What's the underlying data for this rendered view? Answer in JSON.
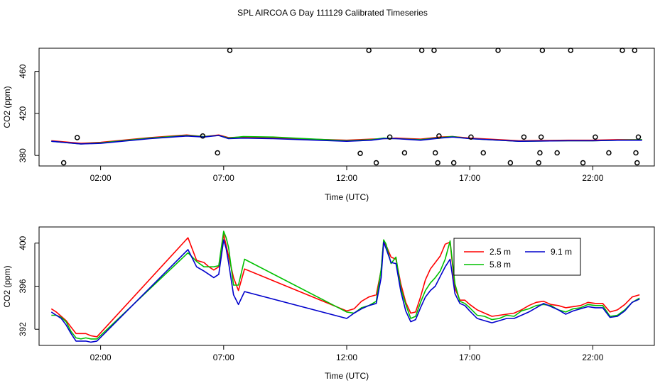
{
  "title": "SPL AIRCOA G  Day 111129  Calibrated Timeseries",
  "chart_data": [
    {
      "type": "scatter+line",
      "ylabel": "CO2 (ppm)",
      "xlabel": "Time (UTC)",
      "xlim": [
        -0.5,
        24.5
      ],
      "ylim": [
        370,
        482
      ],
      "x_ticks": [
        {
          "v": 2,
          "label": "02:00"
        },
        {
          "v": 7,
          "label": "07:00"
        },
        {
          "v": 12,
          "label": "12:00"
        },
        {
          "v": 17,
          "label": "17:00"
        },
        {
          "v": 22,
          "label": "22:00"
        }
      ],
      "y_ticks": [
        {
          "v": 380,
          "label": "380"
        },
        {
          "v": 420,
          "label": "420"
        },
        {
          "v": 460,
          "label": "460"
        }
      ],
      "points_color": "#000000",
      "points": [
        {
          "x": 0.5,
          "y": 373
        },
        {
          "x": 1.05,
          "y": 397
        },
        {
          "x": 6.15,
          "y": 398.5
        },
        {
          "x": 6.75,
          "y": 382.5
        },
        {
          "x": 7.25,
          "y": 480
        },
        {
          "x": 12.55,
          "y": 382
        },
        {
          "x": 12.9,
          "y": 480
        },
        {
          "x": 13.2,
          "y": 373
        },
        {
          "x": 13.75,
          "y": 397.5
        },
        {
          "x": 14.35,
          "y": 382.5
        },
        {
          "x": 15.05,
          "y": 480
        },
        {
          "x": 15.55,
          "y": 480
        },
        {
          "x": 15.6,
          "y": 382.5
        },
        {
          "x": 15.7,
          "y": 373
        },
        {
          "x": 15.75,
          "y": 398.5
        },
        {
          "x": 16.35,
          "y": 373
        },
        {
          "x": 17.05,
          "y": 397.5
        },
        {
          "x": 17.55,
          "y": 382.5
        },
        {
          "x": 18.15,
          "y": 480
        },
        {
          "x": 18.65,
          "y": 373
        },
        {
          "x": 19.2,
          "y": 397.5
        },
        {
          "x": 19.8,
          "y": 373
        },
        {
          "x": 19.85,
          "y": 382.5
        },
        {
          "x": 19.9,
          "y": 397.5
        },
        {
          "x": 19.95,
          "y": 480
        },
        {
          "x": 20.55,
          "y": 382.5
        },
        {
          "x": 21.1,
          "y": 480
        },
        {
          "x": 21.6,
          "y": 373
        },
        {
          "x": 22.1,
          "y": 397.5
        },
        {
          "x": 22.65,
          "y": 382.5
        },
        {
          "x": 23.2,
          "y": 480
        },
        {
          "x": 23.7,
          "y": 480
        },
        {
          "x": 23.75,
          "y": 382.5
        },
        {
          "x": 23.8,
          "y": 373
        },
        {
          "x": 23.85,
          "y": 397.5
        }
      ],
      "series": [
        {
          "name": "2.5 m",
          "color": "#ff0000",
          "x": [
            0,
            1.2,
            2,
            4,
            5.5,
            6.2,
            6.8,
            7.2,
            7.8,
            9,
            12,
            13,
            13.5,
            14,
            15,
            15.8,
            16.3,
            17,
            19,
            21,
            22,
            23,
            24
          ],
          "y": [
            394,
            391.5,
            392.5,
            397,
            399.5,
            398,
            399.5,
            397,
            397.5,
            396.5,
            394.5,
            395.5,
            396,
            396.5,
            395.5,
            397.5,
            398,
            396.5,
            394,
            394.5,
            394.5,
            395,
            395
          ]
        },
        {
          "name": "5.8 m",
          "color": "#00c000",
          "x": [
            0,
            1.2,
            2,
            4,
            5.5,
            6.2,
            6.8,
            7.2,
            7.8,
            9,
            12,
            13,
            13.5,
            14,
            15,
            15.8,
            16.3,
            17,
            19,
            21,
            22,
            23,
            24
          ],
          "y": [
            393.5,
            391,
            392,
            396.5,
            399,
            398,
            399,
            396.5,
            398,
            397.5,
            394,
            395,
            396.5,
            396,
            395,
            397,
            398,
            396,
            393.5,
            394,
            394,
            394.5,
            395
          ]
        },
        {
          "name": "9.1 m",
          "color": "#0000cc",
          "x": [
            0,
            1.2,
            2,
            4,
            5.5,
            6.2,
            6.8,
            7.2,
            7.8,
            9,
            12,
            13,
            13.5,
            14,
            15,
            15.8,
            16.3,
            17,
            19,
            21,
            22,
            23,
            24
          ],
          "y": [
            393.5,
            391,
            391.5,
            396,
            398.5,
            397.5,
            399,
            396,
            396.5,
            396,
            393.5,
            394.5,
            396,
            396,
            394.5,
            396.5,
            397.5,
            396,
            393.5,
            394,
            394,
            394.5,
            394.5
          ]
        }
      ]
    },
    {
      "type": "line",
      "ylabel": "CO2 (ppm)",
      "xlabel": "Time (UTC)",
      "xlim": [
        -0.5,
        24.5
      ],
      "ylim": [
        390.5,
        401.5
      ],
      "x_ticks": [
        {
          "v": 2,
          "label": "02:00"
        },
        {
          "v": 7,
          "label": "07:00"
        },
        {
          "v": 12,
          "label": "12:00"
        },
        {
          "v": 17,
          "label": "17:00"
        },
        {
          "v": 22,
          "label": "22:00"
        }
      ],
      "y_ticks": [
        {
          "v": 392,
          "label": "392"
        },
        {
          "v": 396,
          "label": "396"
        },
        {
          "v": 400,
          "label": "400"
        }
      ],
      "legend": {
        "position": "top-right",
        "entries": [
          {
            "label": "2.5 m",
            "color": "#ff0000"
          },
          {
            "label": "9.1 m",
            "color": "#0000cc"
          },
          {
            "label": "5.8 m",
            "color": "#00c000"
          }
        ]
      },
      "series": [
        {
          "name": "2.5 m",
          "color": "#ff0000",
          "x": [
            0,
            0.2,
            0.4,
            0.6,
            0.8,
            1,
            1.2,
            1.4,
            1.6,
            1.85,
            5.55,
            5.9,
            6.2,
            6.4,
            6.6,
            6.8,
            7,
            7.1,
            7.2,
            7.4,
            7.6,
            7.85,
            12,
            12.3,
            12.6,
            12.9,
            13.2,
            13.4,
            13.5,
            13.6,
            13.8,
            14,
            14.2,
            14.4,
            14.6,
            14.8,
            15,
            15.2,
            15.4,
            15.6,
            15.8,
            16,
            16.2,
            16.4,
            16.6,
            16.8,
            17,
            17.3,
            17.6,
            17.9,
            18.2,
            18.5,
            18.8,
            19.1,
            19.4,
            19.7,
            20,
            20.3,
            20.6,
            20.9,
            21.2,
            21.5,
            21.8,
            22.1,
            22.4,
            22.7,
            23,
            23.3,
            23.6,
            23.9
          ],
          "y": [
            393.9,
            393.6,
            393.2,
            392.8,
            392.2,
            391.6,
            391.6,
            391.6,
            391.4,
            391.3,
            400.5,
            398.4,
            398.2,
            397.8,
            397.5,
            397.8,
            400.8,
            399.8,
            398.8,
            396.8,
            395.6,
            397.6,
            393.7,
            393.9,
            394.6,
            395,
            395.2,
            397.5,
            400.2,
            399.8,
            398.7,
            398.5,
            396.2,
            394.5,
            393.5,
            393.6,
            395,
            396.6,
            397.6,
            398.2,
            398.8,
            399.9,
            400.1,
            395.8,
            394.7,
            394.7,
            394.3,
            393.8,
            393.5,
            393.2,
            393.3,
            393.4,
            393.5,
            393.8,
            394.2,
            394.5,
            394.6,
            394.3,
            394.2,
            394,
            394.1,
            394.2,
            394.5,
            394.4,
            394.4,
            393.6,
            393.8,
            394.3,
            395,
            395.2
          ]
        },
        {
          "name": "5.8 m",
          "color": "#00c000",
          "x": [
            0,
            0.2,
            0.4,
            0.6,
            0.8,
            1,
            1.2,
            1.4,
            1.6,
            1.85,
            5.55,
            5.9,
            6.2,
            6.4,
            6.6,
            6.8,
            7,
            7.1,
            7.2,
            7.4,
            7.6,
            7.85,
            12,
            12.3,
            12.6,
            12.9,
            13.2,
            13.4,
            13.5,
            13.6,
            13.8,
            14,
            14.2,
            14.4,
            14.6,
            14.8,
            15,
            15.2,
            15.4,
            15.6,
            15.8,
            16,
            16.2,
            16.4,
            16.6,
            16.8,
            17,
            17.3,
            17.6,
            17.9,
            18.2,
            18.5,
            18.8,
            19.1,
            19.4,
            19.7,
            20,
            20.3,
            20.6,
            20.9,
            21.2,
            21.5,
            21.8,
            22.1,
            22.4,
            22.7,
            23,
            23.3,
            23.6,
            23.9
          ],
          "y": [
            393.3,
            393.3,
            393.1,
            392.7,
            391.8,
            391.2,
            391.1,
            391.2,
            391.1,
            391.1,
            399.1,
            398.3,
            397.8,
            397.8,
            397.8,
            397.9,
            401.1,
            400.5,
            399.6,
            396.1,
            396.1,
            398.5,
            393.6,
            393.5,
            394,
            394.2,
            394.6,
            397.6,
            400.3,
            399.9,
            398.1,
            398.7,
            395.8,
            394.3,
            393,
            393.2,
            394.5,
            395.6,
            396.3,
            396.8,
            397.4,
            398.5,
            400.2,
            396.2,
            394.6,
            394.4,
            394,
            393.3,
            393.2,
            392.9,
            393,
            393.3,
            393.2,
            393.7,
            393.9,
            394.2,
            394.3,
            394.2,
            393.8,
            393.6,
            393.9,
            394,
            394.3,
            394.2,
            394.2,
            393.2,
            393.3,
            393.8,
            394.5,
            394.9
          ]
        },
        {
          "name": "9.1 m",
          "color": "#0000cc",
          "x": [
            0,
            0.2,
            0.4,
            0.6,
            0.8,
            1,
            1.2,
            1.4,
            1.6,
            1.85,
            5.55,
            5.9,
            6.2,
            6.4,
            6.6,
            6.8,
            7,
            7.1,
            7.2,
            7.4,
            7.6,
            7.85,
            12,
            12.3,
            12.6,
            12.9,
            13.2,
            13.4,
            13.5,
            13.6,
            13.8,
            14,
            14.2,
            14.4,
            14.6,
            14.8,
            15,
            15.2,
            15.4,
            15.6,
            15.8,
            16,
            16.2,
            16.4,
            16.6,
            16.8,
            17,
            17.3,
            17.6,
            17.9,
            18.2,
            18.5,
            18.8,
            19.1,
            19.4,
            19.7,
            20,
            20.3,
            20.6,
            20.9,
            21.2,
            21.5,
            21.8,
            22.1,
            22.4,
            22.7,
            23,
            23.3,
            23.6,
            23.9
          ],
          "y": [
            393.6,
            393.3,
            393,
            392.4,
            391.6,
            390.9,
            390.9,
            390.9,
            390.8,
            390.9,
            399.4,
            397.8,
            397.4,
            397.1,
            396.8,
            397.1,
            400.3,
            399.5,
            398.2,
            395.2,
            394.3,
            395.5,
            393,
            393.5,
            393.9,
            394.2,
            394.4,
            396.8,
            400.1,
            399.5,
            398.2,
            398.1,
            395.5,
            393.7,
            392.7,
            392.9,
            394,
            395,
            395.6,
            396,
            396.9,
            397.8,
            398.5,
            395.3,
            394.4,
            394.2,
            393.7,
            393,
            392.8,
            392.6,
            392.8,
            393,
            393,
            393.3,
            393.6,
            394,
            394.4,
            394.1,
            393.8,
            393.4,
            393.7,
            393.9,
            394.1,
            394,
            394,
            393.1,
            393.2,
            393.7,
            394.5,
            394.8
          ]
        }
      ]
    }
  ]
}
